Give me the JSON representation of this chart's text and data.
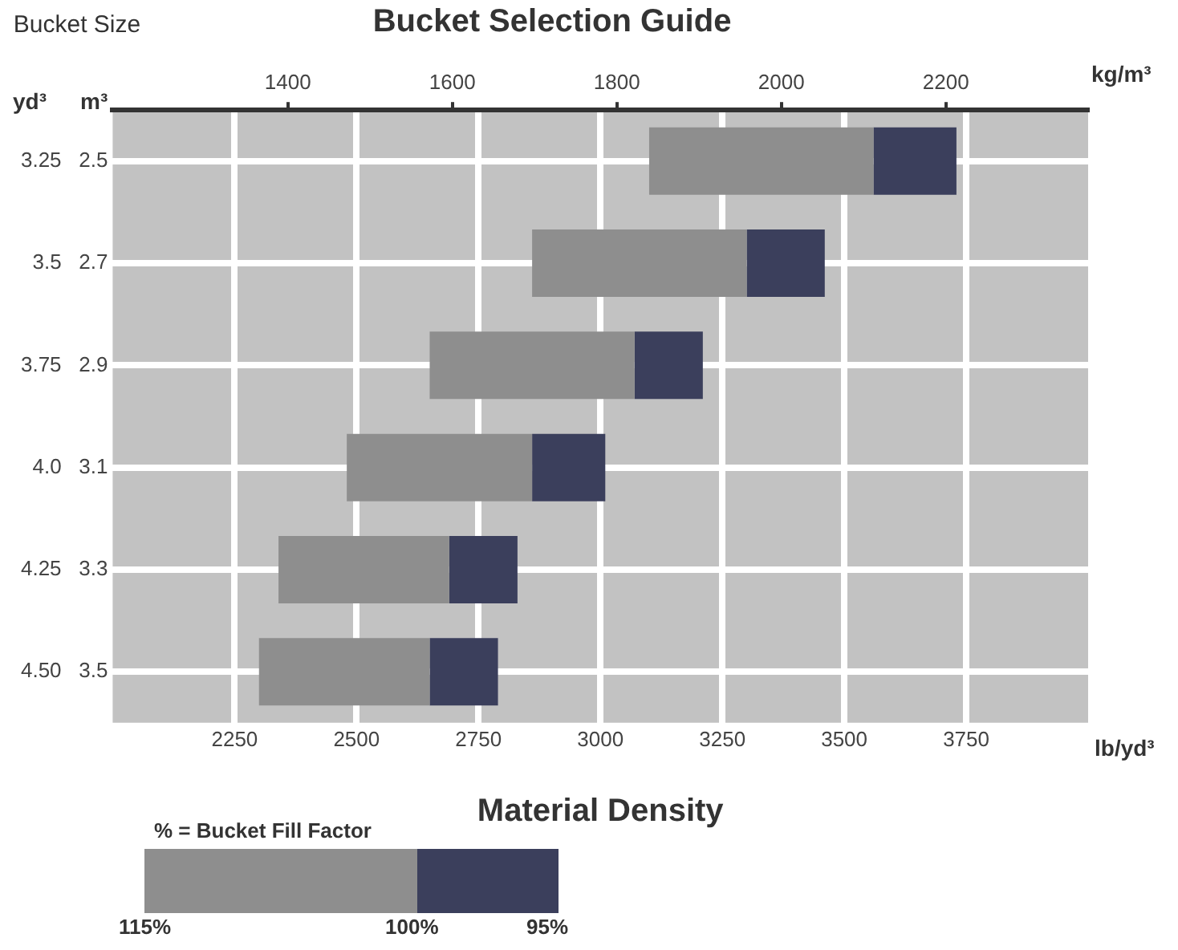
{
  "chart_data": {
    "type": "bar",
    "orientation": "horizontal",
    "title": "Bucket Selection Guide",
    "xlabel": "Material Density",
    "ylabel": "Bucket Size",
    "legend_title": "% = Bucket Fill Factor",
    "grid": true,
    "categories": [
      "3.25   2.5",
      "3.5   2.7",
      "3.75   2.9",
      "4.0   3.1",
      "4.25   3.3",
      "4.50   3.5"
    ],
    "series": [
      {
        "color": "#8e8e8e",
        "base": [
          3100,
          2860,
          2650,
          2480,
          2340,
          2300
        ],
        "values": [
          460,
          440,
          420,
          380,
          350,
          350
        ]
      },
      {
        "color": "#3b3f5c",
        "base": [
          3560,
          3300,
          3070,
          2860,
          2690,
          2650
        ],
        "values": [
          170,
          160,
          140,
          150,
          140,
          140
        ]
      }
    ],
    "xlim": [
      2000,
      4000
    ],
    "xticks": [
      2250,
      2500,
      2750,
      3000,
      3250,
      3500,
      3750
    ],
    "x2lim": [
      1187,
      2373
    ],
    "x2ticks": [
      1400,
      1600,
      1800,
      2000,
      2200
    ],
    "annotations": [
      "yd³",
      "m³",
      "lb/yd³",
      "kg/m³",
      "115%",
      "100%",
      "95%"
    ]
  }
}
